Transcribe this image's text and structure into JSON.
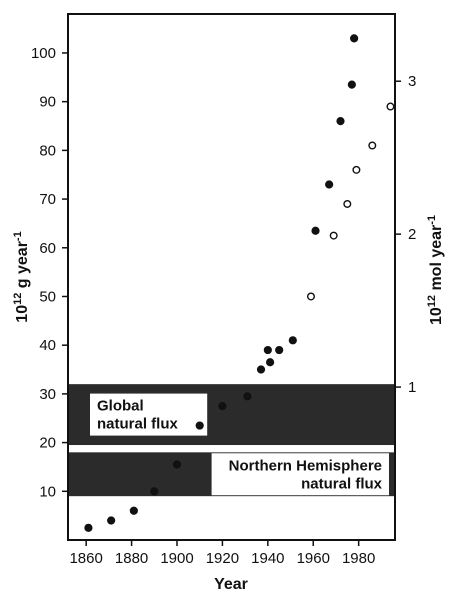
{
  "chart_data": {
    "type": "scatter",
    "xlabel": "Year",
    "ylabel_left": {
      "base": "10",
      "sup": "12",
      "unit": " g year",
      "exp": "-1"
    },
    "ylabel_right": {
      "base": "10",
      "sup": "12",
      "unit": " mol year",
      "exp": "-1"
    },
    "xlim": [
      1852,
      1996
    ],
    "ylim": [
      0,
      108
    ],
    "x_ticks": [
      1860,
      1880,
      1900,
      1920,
      1940,
      1960,
      1980
    ],
    "x_tick_labels": [
      "1860",
      "1880",
      "1900",
      "1920",
      "1940",
      "1960",
      "1980"
    ],
    "y_ticks": [
      10,
      20,
      30,
      40,
      50,
      60,
      70,
      80,
      90,
      100
    ],
    "y_tick_labels": [
      "10",
      "20",
      "30",
      "40",
      "50",
      "60",
      "70",
      "80",
      "90",
      "100"
    ],
    "right_ticks": [
      {
        "label": "1",
        "value": 31.4
      },
      {
        "label": "2",
        "value": 62.8
      },
      {
        "label": "3",
        "value": 94.2
      }
    ],
    "bands": [
      {
        "label_lines": [
          "Global",
          "natural flux"
        ],
        "ymin": 19.5,
        "ymax": 32,
        "color": "#2b2b2b",
        "label_pos": "left"
      },
      {
        "label_lines": [
          "Northern Hemisphere",
          "natural flux"
        ],
        "ymin": 9,
        "ymax": 18,
        "color": "#2b2b2b",
        "label_pos": "right"
      }
    ],
    "series": [
      {
        "marker": "filled",
        "x": [
          1861,
          1871,
          1881,
          1890,
          1900,
          1910,
          1920,
          1931,
          1937,
          1940,
          1941,
          1945,
          1951,
          1961,
          1967,
          1972,
          1977,
          1978
        ],
        "y": [
          2.5,
          4,
          6,
          10,
          15.5,
          23.5,
          27.5,
          29.5,
          35,
          39,
          36.5,
          39,
          41,
          63.5,
          73,
          86,
          93.5,
          103
        ]
      },
      {
        "marker": "open",
        "x": [
          1959,
          1969,
          1975,
          1979,
          1986,
          1994
        ],
        "y": [
          50,
          62.5,
          69,
          76,
          81,
          89
        ]
      }
    ]
  }
}
